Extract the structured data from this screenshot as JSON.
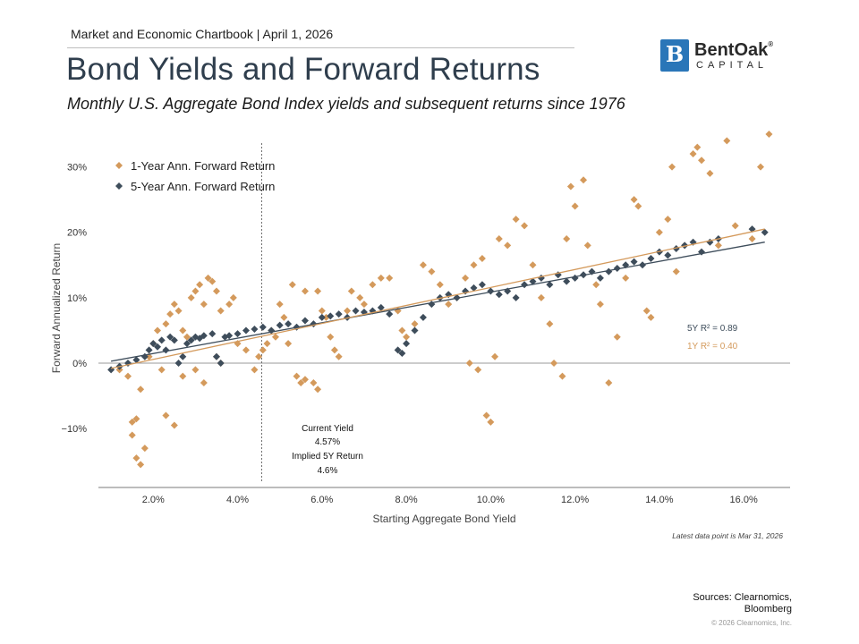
{
  "header": {
    "kicker": "Market and Economic Chartbook | April 1, 2026",
    "title": "Bond Yields and Forward Returns",
    "subtitle": "Monthly U.S. Aggregate Bond Index yields and subsequent returns since 1976"
  },
  "logo": {
    "mark": "B",
    "name": "BentOak",
    "reg": "®",
    "sub": "CAPITAL"
  },
  "colors": {
    "one_year": "#d49a5c",
    "five_year": "#3e4d5b",
    "zero_line": "#9a9a9a",
    "axis": "#7a7a7a"
  },
  "chart_data": {
    "type": "scatter",
    "xlabel": "Starting Aggregate Bond Yield",
    "ylabel": "Forward Annualized Return",
    "xlim": [
      0.7,
      17.1
    ],
    "ylim": [
      -19,
      35
    ],
    "x_ticks": [
      2,
      4,
      6,
      8,
      10,
      12,
      14,
      16
    ],
    "x_tick_labels": [
      "2.0%",
      "4.0%",
      "6.0%",
      "8.0%",
      "10.0%",
      "12.0%",
      "14.0%",
      "16.0%"
    ],
    "y_ticks": [
      -10,
      0,
      10,
      20,
      30
    ],
    "y_tick_labels": [
      "−10%",
      "0%",
      "10%",
      "20%",
      "30%"
    ],
    "legend": [
      {
        "name": "1-Year Ann. Forward Return",
        "color": "#d49a5c"
      },
      {
        "name": "5-Year Ann. Forward Return",
        "color": "#3e4d5b"
      }
    ],
    "legend_position": "top-left",
    "series": [
      {
        "name": "1-Year Ann. Forward Return",
        "points": [
          [
            1.2,
            -1
          ],
          [
            1.4,
            -2
          ],
          [
            1.5,
            -9
          ],
          [
            1.5,
            -11
          ],
          [
            1.6,
            -8.5
          ],
          [
            1.6,
            -14.5
          ],
          [
            1.7,
            -15.5
          ],
          [
            1.8,
            -13
          ],
          [
            1.7,
            -4
          ],
          [
            1.9,
            1
          ],
          [
            2.0,
            3
          ],
          [
            2.1,
            5
          ],
          [
            2.2,
            -1
          ],
          [
            2.3,
            -8
          ],
          [
            2.5,
            -9.5
          ],
          [
            2.3,
            6
          ],
          [
            2.4,
            7.5
          ],
          [
            2.5,
            9
          ],
          [
            2.6,
            8
          ],
          [
            2.7,
            5
          ],
          [
            2.8,
            4
          ],
          [
            2.9,
            10
          ],
          [
            3.0,
            11
          ],
          [
            3.1,
            12
          ],
          [
            3.2,
            9
          ],
          [
            3.3,
            13
          ],
          [
            3.4,
            12.5
          ],
          [
            3.5,
            11
          ],
          [
            3.6,
            8
          ],
          [
            3.8,
            9
          ],
          [
            3.9,
            10
          ],
          [
            3.0,
            -1
          ],
          [
            2.7,
            -2
          ],
          [
            3.2,
            -3
          ],
          [
            3.5,
            1
          ],
          [
            3.6,
            0
          ],
          [
            4.0,
            3
          ],
          [
            4.2,
            2
          ],
          [
            4.4,
            -1
          ],
          [
            4.5,
            1
          ],
          [
            4.6,
            2
          ],
          [
            4.7,
            3
          ],
          [
            4.8,
            5
          ],
          [
            4.9,
            4
          ],
          [
            5.0,
            9
          ],
          [
            5.1,
            7
          ],
          [
            5.2,
            3
          ],
          [
            5.4,
            -2
          ],
          [
            5.5,
            -3
          ],
          [
            5.6,
            -2.5
          ],
          [
            5.8,
            -3
          ],
          [
            5.9,
            -4
          ],
          [
            5.3,
            12
          ],
          [
            5.6,
            11
          ],
          [
            5.9,
            11
          ],
          [
            6.0,
            8
          ],
          [
            6.1,
            7
          ],
          [
            6.2,
            4
          ],
          [
            6.3,
            2
          ],
          [
            6.4,
            1
          ],
          [
            6.6,
            8
          ],
          [
            6.7,
            11
          ],
          [
            6.9,
            10
          ],
          [
            7.0,
            9
          ],
          [
            7.2,
            12
          ],
          [
            7.4,
            13
          ],
          [
            7.6,
            13
          ],
          [
            7.8,
            8
          ],
          [
            7.9,
            5
          ],
          [
            8.0,
            4
          ],
          [
            8.2,
            6
          ],
          [
            8.4,
            15
          ],
          [
            8.6,
            14
          ],
          [
            8.8,
            12
          ],
          [
            9.0,
            9
          ],
          [
            9.2,
            10
          ],
          [
            9.4,
            13
          ],
          [
            9.6,
            15
          ],
          [
            9.8,
            16
          ],
          [
            10.0,
            -9
          ],
          [
            9.9,
            -8
          ],
          [
            10.1,
            1
          ],
          [
            9.5,
            0
          ],
          [
            9.7,
            -1
          ],
          [
            10.2,
            19
          ],
          [
            10.4,
            18
          ],
          [
            10.6,
            22
          ],
          [
            10.8,
            21
          ],
          [
            11.0,
            15
          ],
          [
            11.2,
            10
          ],
          [
            11.4,
            6
          ],
          [
            11.5,
            0
          ],
          [
            11.7,
            -2
          ],
          [
            11.8,
            19
          ],
          [
            11.9,
            27
          ],
          [
            12.0,
            24
          ],
          [
            12.2,
            28
          ],
          [
            12.3,
            18
          ],
          [
            12.5,
            12
          ],
          [
            12.6,
            9
          ],
          [
            12.8,
            -3
          ],
          [
            13.0,
            4
          ],
          [
            13.2,
            13
          ],
          [
            13.4,
            25
          ],
          [
            13.5,
            24
          ],
          [
            13.7,
            8
          ],
          [
            13.8,
            7
          ],
          [
            14.0,
            20
          ],
          [
            14.2,
            22
          ],
          [
            14.3,
            30
          ],
          [
            14.4,
            14
          ],
          [
            14.6,
            18
          ],
          [
            14.8,
            32
          ],
          [
            14.9,
            33
          ],
          [
            15.0,
            31
          ],
          [
            15.2,
            29
          ],
          [
            15.4,
            18
          ],
          [
            15.6,
            34
          ],
          [
            15.8,
            21
          ],
          [
            16.2,
            19
          ],
          [
            16.4,
            30
          ],
          [
            16.6,
            35
          ]
        ]
      },
      {
        "name": "5-Year Ann. Forward Return",
        "points": [
          [
            1.0,
            -1
          ],
          [
            1.2,
            -0.5
          ],
          [
            1.4,
            0
          ],
          [
            1.6,
            0.5
          ],
          [
            1.8,
            1
          ],
          [
            1.9,
            2
          ],
          [
            2.0,
            3
          ],
          [
            2.1,
            2.5
          ],
          [
            2.2,
            3.5
          ],
          [
            2.3,
            2
          ],
          [
            2.4,
            4
          ],
          [
            2.5,
            3.5
          ],
          [
            2.6,
            0
          ],
          [
            2.7,
            1
          ],
          [
            2.8,
            3
          ],
          [
            2.9,
            3.5
          ],
          [
            3.0,
            4
          ],
          [
            3.1,
            3.8
          ],
          [
            3.2,
            4.2
          ],
          [
            3.4,
            4.5
          ],
          [
            3.5,
            1
          ],
          [
            3.6,
            0
          ],
          [
            3.7,
            4
          ],
          [
            3.8,
            4.2
          ],
          [
            4.0,
            4.5
          ],
          [
            4.2,
            5
          ],
          [
            4.4,
            5.2
          ],
          [
            4.6,
            5.5
          ],
          [
            4.8,
            5
          ],
          [
            5.0,
            5.8
          ],
          [
            5.2,
            6
          ],
          [
            5.4,
            5.5
          ],
          [
            5.6,
            6.5
          ],
          [
            5.8,
            6
          ],
          [
            6.0,
            7
          ],
          [
            6.2,
            7.2
          ],
          [
            6.4,
            7.5
          ],
          [
            6.6,
            7
          ],
          [
            6.8,
            8
          ],
          [
            7.0,
            7.8
          ],
          [
            7.2,
            8
          ],
          [
            7.4,
            8.5
          ],
          [
            7.6,
            7.5
          ],
          [
            7.8,
            2
          ],
          [
            7.9,
            1.5
          ],
          [
            8.0,
            3
          ],
          [
            8.2,
            5
          ],
          [
            8.4,
            7
          ],
          [
            8.6,
            9
          ],
          [
            8.8,
            10
          ],
          [
            9.0,
            10.5
          ],
          [
            9.2,
            10
          ],
          [
            9.4,
            11
          ],
          [
            9.6,
            11.5
          ],
          [
            9.8,
            12
          ],
          [
            10.0,
            11
          ],
          [
            10.2,
            10.5
          ],
          [
            10.4,
            11
          ],
          [
            10.6,
            10
          ],
          [
            10.8,
            12
          ],
          [
            11.0,
            12.5
          ],
          [
            11.2,
            13
          ],
          [
            11.4,
            12
          ],
          [
            11.6,
            13.5
          ],
          [
            11.8,
            12.5
          ],
          [
            12.0,
            13
          ],
          [
            12.2,
            13.5
          ],
          [
            12.4,
            14
          ],
          [
            12.6,
            13
          ],
          [
            12.8,
            14
          ],
          [
            13.0,
            14.5
          ],
          [
            13.2,
            15
          ],
          [
            13.4,
            15.5
          ],
          [
            13.6,
            15
          ],
          [
            13.8,
            16
          ],
          [
            14.0,
            17
          ],
          [
            14.2,
            16.5
          ],
          [
            14.4,
            17.5
          ],
          [
            14.6,
            18
          ],
          [
            14.8,
            18.5
          ],
          [
            15.0,
            17
          ],
          [
            15.2,
            18.5
          ],
          [
            15.4,
            19
          ],
          [
            16.2,
            20.5
          ],
          [
            16.5,
            20
          ]
        ]
      }
    ],
    "trendlines": [
      {
        "series": "5-Year Ann. Forward Return",
        "from": [
          1.0,
          0.3
        ],
        "to": [
          16.5,
          18.5
        ]
      },
      {
        "series": "1-Year Ann. Forward Return",
        "from": [
          1.0,
          -0.8
        ],
        "to": [
          16.5,
          20.5
        ]
      }
    ],
    "r_squared": {
      "five_year": "5Y R² = 0.89",
      "one_year": "1Y R² = 0.40"
    },
    "current_yield_marker": {
      "x": 4.57
    },
    "annotation": [
      "Current Yield",
      "4.57%",
      "Implied 5Y Return",
      "4.6%"
    ],
    "note": "Latest data point is Mar 31, 2026"
  },
  "footer": {
    "sources_line1": "Sources: Clearnomics,",
    "sources_line2": "Bloomberg",
    "copyright": "© 2026 Clearnomics, Inc."
  }
}
